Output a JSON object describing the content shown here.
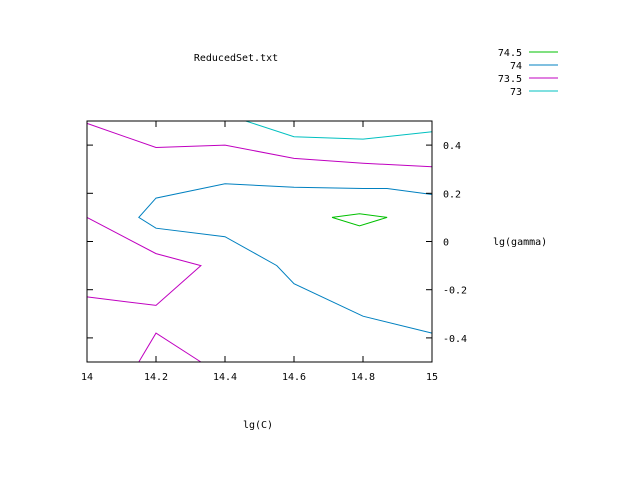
{
  "chart_data": {
    "type": "line",
    "title": "ReducedSet.txt",
    "xlabel": "lg(C)",
    "ylabel": "lg(gamma)",
    "xlim": [
      14,
      15
    ],
    "ylim": [
      -0.5,
      0.5
    ],
    "x_ticks": [
      {
        "value": 14,
        "label": "14"
      },
      {
        "value": 14.2,
        "label": "14.2"
      },
      {
        "value": 14.4,
        "label": "14.4"
      },
      {
        "value": 14.6,
        "label": "14.6"
      },
      {
        "value": 14.8,
        "label": "14.8"
      },
      {
        "value": 15,
        "label": "15"
      }
    ],
    "y_ticks": [
      {
        "value": -0.4,
        "label": "-0.4"
      },
      {
        "value": -0.2,
        "label": "-0.2"
      },
      {
        "value": 0,
        "label": "0"
      },
      {
        "value": 0.2,
        "label": "0.2"
      },
      {
        "value": 0.4,
        "label": "0.4"
      }
    ],
    "legend_position": "top-right, outside plot",
    "series": [
      {
        "name": "74.5",
        "color": "#00c000",
        "paths": [
          [
            [
              14.71,
              0.1
            ],
            [
              14.79,
              0.115
            ],
            [
              14.87,
              0.1
            ],
            [
              14.79,
              0.065
            ],
            [
              14.71,
              0.1
            ]
          ]
        ]
      },
      {
        "name": "74",
        "color": "#0080c0",
        "paths": [
          [
            [
              15.0,
              0.195
            ],
            [
              14.87,
              0.22
            ],
            [
              14.8,
              0.22
            ],
            [
              14.6,
              0.225
            ],
            [
              14.4,
              0.24
            ],
            [
              14.2,
              0.18
            ],
            [
              14.15,
              0.1
            ],
            [
              14.2,
              0.055
            ],
            [
              14.4,
              0.02
            ],
            [
              14.55,
              -0.1
            ],
            [
              14.6,
              -0.175
            ],
            [
              14.8,
              -0.31
            ],
            [
              15.0,
              -0.38
            ]
          ]
        ]
      },
      {
        "name": "73.5",
        "color": "#c000c0",
        "paths": [
          [
            [
              14.0,
              0.49
            ],
            [
              14.2,
              0.39
            ],
            [
              14.4,
              0.4
            ],
            [
              14.6,
              0.345
            ],
            [
              14.8,
              0.325
            ],
            [
              15.0,
              0.31
            ]
          ],
          [
            [
              14.0,
              0.1
            ],
            [
              14.2,
              -0.05
            ],
            [
              14.33,
              -0.1
            ],
            [
              14.2,
              -0.265
            ],
            [
              14.0,
              -0.23
            ]
          ],
          [
            [
              14.15,
              -0.5
            ],
            [
              14.2,
              -0.38
            ],
            [
              14.33,
              -0.5
            ]
          ],
          [
            [
              14.79,
              -0.5
            ],
            [
              14.82,
              -0.5
            ]
          ]
        ]
      },
      {
        "name": "73",
        "color": "#00c0c0",
        "paths": [
          [
            [
              14.46,
              0.5
            ],
            [
              14.6,
              0.435
            ],
            [
              14.8,
              0.425
            ],
            [
              15.0,
              0.455
            ]
          ]
        ]
      }
    ]
  }
}
